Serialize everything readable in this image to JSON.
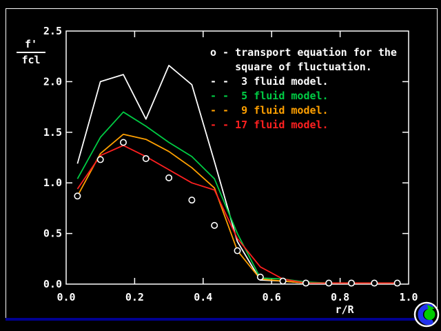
{
  "chart_data": {
    "type": "line",
    "title": "",
    "xlabel": "r/R",
    "ylabel_numerator": "f'",
    "ylabel_denominator": "fcl",
    "xlim": [
      0.0,
      1.0
    ],
    "ylim": [
      0.0,
      2.5
    ],
    "x_tick_labels": [
      "0.0",
      "0.2",
      "0.4",
      "0.6",
      "0.8",
      "1.0"
    ],
    "x_tick_values": [
      0.0,
      0.2,
      0.4,
      0.6,
      0.8,
      1.0
    ],
    "y_tick_labels": [
      "0.0",
      "0.5",
      "1.0",
      "1.5",
      "2.0",
      "2.5"
    ],
    "y_tick_values": [
      0.0,
      0.5,
      1.0,
      1.5,
      2.0,
      2.5
    ],
    "grid": false,
    "legend_position": "top-right-inside",
    "x": [
      0.033,
      0.1,
      0.167,
      0.233,
      0.3,
      0.367,
      0.433,
      0.5,
      0.567,
      0.633,
      0.7,
      0.767,
      0.833,
      0.9,
      0.967
    ],
    "series": [
      {
        "name": "transport equation for the square of fluctuation",
        "style": "scatter",
        "marker": "open-circle",
        "color": "#ffffff",
        "values": [
          0.87,
          1.23,
          1.4,
          1.24,
          1.05,
          0.83,
          0.58,
          0.33,
          0.07,
          0.03,
          0.01,
          0.01,
          0.01,
          0.01,
          0.01
        ]
      },
      {
        "name": "3 fluid model",
        "style": "line",
        "color": "#ffffff",
        "values": [
          1.19,
          2.0,
          2.07,
          1.63,
          2.16,
          1.97,
          1.21,
          0.42,
          0.04,
          0.03,
          0.01,
          0.01,
          0.01,
          0.01,
          0.01
        ]
      },
      {
        "name": "5 fluid model",
        "style": "line",
        "color": "#00cc44",
        "values": [
          1.04,
          1.45,
          1.7,
          1.56,
          1.4,
          1.26,
          1.04,
          0.5,
          0.06,
          0.05,
          0.02,
          0.01,
          0.01,
          0.01,
          0.01
        ]
      },
      {
        "name": "9 fluid model",
        "style": "line",
        "color": "#ffa000",
        "values": [
          0.87,
          1.29,
          1.48,
          1.43,
          1.31,
          1.15,
          0.95,
          0.33,
          0.05,
          0.03,
          0.01,
          0.01,
          0.01,
          0.01,
          0.01
        ]
      },
      {
        "name": "17 fluid model",
        "style": "line",
        "color": "#ff2020",
        "values": [
          0.94,
          1.27,
          1.37,
          1.26,
          1.13,
          1.0,
          0.93,
          0.45,
          0.17,
          0.05,
          0.01,
          0.01,
          0.01,
          0.01,
          0.01
        ]
      }
    ]
  },
  "legend": {
    "rows": [
      {
        "text": "o - transport equation for the",
        "color": "#ffffff",
        "name": "legend-transport-line-1"
      },
      {
        "text": "    square of fluctuation.",
        "color": "#ffffff",
        "name": "legend-transport-line-2"
      },
      {
        "text": "- -  3 fluid model.",
        "color": "#ffffff",
        "name": "legend-3-fluid-model"
      },
      {
        "text": "- -  5 fluid model.",
        "color": "#00cc44",
        "name": "legend-5-fluid-model"
      },
      {
        "text": "- -  9 fluid model.",
        "color": "#ffa000",
        "name": "legend-9-fluid-model"
      },
      {
        "text": "- - 17 fluid model.",
        "color": "#ff2020",
        "name": "legend-17-fluid-model"
      }
    ]
  },
  "logo": {
    "name": "swirl-globe-logo",
    "ring_color": "#ffffff",
    "left_color": "#2233ee",
    "right_color": "#00cc00"
  },
  "colors": {
    "background": "#000000",
    "frame": "#ffffff",
    "bottom_strip": "#000090",
    "axis": "#ffffff"
  }
}
